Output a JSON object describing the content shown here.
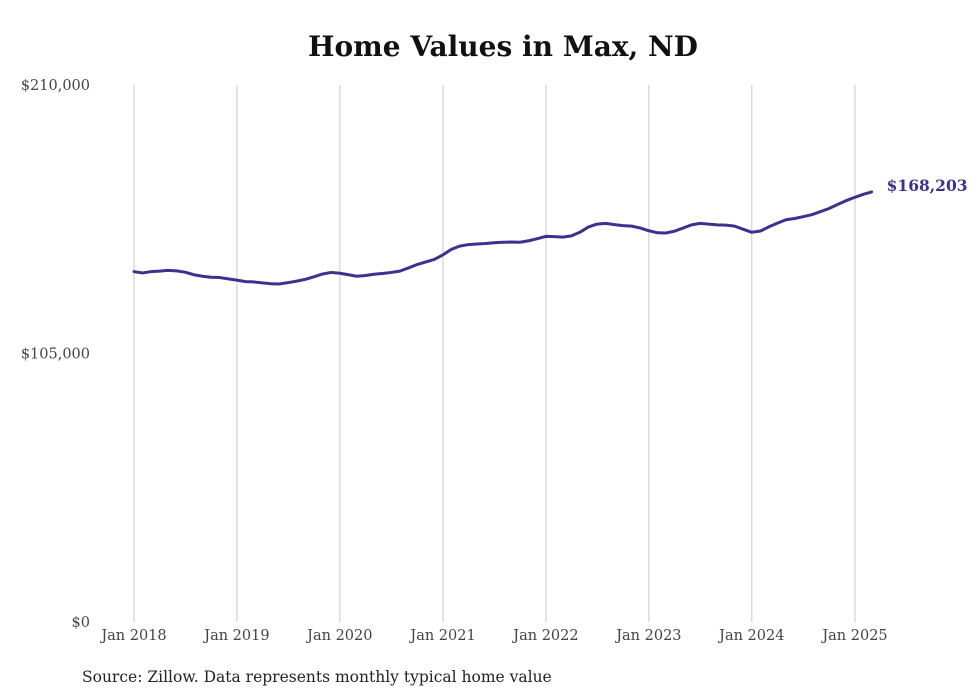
{
  "title": "Home Values in Max, ND",
  "source": "Source: Zillow. Data represents monthly typical home value",
  "end_label": "$168,203",
  "colors": {
    "line": "#3b3290",
    "grid": "#c8c8c8",
    "text": "#444444"
  },
  "chart_data": {
    "type": "line",
    "title": "Home Values in Max, ND",
    "xlabel": "",
    "ylabel": "",
    "ylim": [
      0,
      210000
    ],
    "xlim": [
      "2018-01",
      "2025-03"
    ],
    "grid": {
      "vertical": true,
      "horizontal": false
    },
    "y_ticks": [
      {
        "value": 0,
        "label": "$0"
      },
      {
        "value": 105000,
        "label": "$105,000"
      },
      {
        "value": 210000,
        "label": "$210,000"
      }
    ],
    "x_ticks": [
      {
        "value": "2018-01",
        "label": "Jan 2018"
      },
      {
        "value": "2019-01",
        "label": "Jan 2019"
      },
      {
        "value": "2020-01",
        "label": "Jan 2020"
      },
      {
        "value": "2021-01",
        "label": "Jan 2021"
      },
      {
        "value": "2022-01",
        "label": "Jan 2022"
      },
      {
        "value": "2023-01",
        "label": "Jan 2023"
      },
      {
        "value": "2024-01",
        "label": "Jan 2024"
      },
      {
        "value": "2025-01",
        "label": "Jan 2025"
      }
    ],
    "series": [
      {
        "color": "#3b3290",
        "points": [
          [
            "2018-01",
            137000
          ],
          [
            "2018-02",
            136500
          ],
          [
            "2018-03",
            137000
          ],
          [
            "2018-04",
            137200
          ],
          [
            "2018-05",
            137500
          ],
          [
            "2018-06",
            137300
          ],
          [
            "2018-07",
            136800
          ],
          [
            "2018-08",
            135800
          ],
          [
            "2018-09",
            135200
          ],
          [
            "2018-10",
            134800
          ],
          [
            "2018-11",
            134700
          ],
          [
            "2018-12",
            134200
          ],
          [
            "2019-01",
            133700
          ],
          [
            "2019-02",
            133100
          ],
          [
            "2019-03",
            133000
          ],
          [
            "2019-04",
            132600
          ],
          [
            "2019-05",
            132300
          ],
          [
            "2019-06",
            132200
          ],
          [
            "2019-07",
            132700
          ],
          [
            "2019-08",
            133300
          ],
          [
            "2019-09",
            134000
          ],
          [
            "2019-10",
            135000
          ],
          [
            "2019-11",
            136100
          ],
          [
            "2019-12",
            136700
          ],
          [
            "2020-01",
            136400
          ],
          [
            "2020-02",
            135800
          ],
          [
            "2020-03",
            135200
          ],
          [
            "2020-04",
            135500
          ],
          [
            "2020-05",
            136000
          ],
          [
            "2020-06",
            136300
          ],
          [
            "2020-07",
            136700
          ],
          [
            "2020-08",
            137200
          ],
          [
            "2020-09",
            138500
          ],
          [
            "2020-10",
            139800
          ],
          [
            "2020-11",
            140800
          ],
          [
            "2020-12",
            141800
          ],
          [
            "2021-01",
            143600
          ],
          [
            "2021-02",
            145800
          ],
          [
            "2021-03",
            147000
          ],
          [
            "2021-04",
            147600
          ],
          [
            "2021-05",
            147800
          ],
          [
            "2021-06",
            148000
          ],
          [
            "2021-07",
            148300
          ],
          [
            "2021-08",
            148500
          ],
          [
            "2021-09",
            148600
          ],
          [
            "2021-10",
            148500
          ],
          [
            "2021-11",
            149100
          ],
          [
            "2021-12",
            149900
          ],
          [
            "2022-01",
            150800
          ],
          [
            "2022-02",
            150700
          ],
          [
            "2022-03",
            150500
          ],
          [
            "2022-04",
            151000
          ],
          [
            "2022-05",
            152400
          ],
          [
            "2022-06",
            154500
          ],
          [
            "2022-07",
            155600
          ],
          [
            "2022-08",
            155900
          ],
          [
            "2022-09",
            155400
          ],
          [
            "2022-10",
            155000
          ],
          [
            "2022-11",
            154800
          ],
          [
            "2022-12",
            154100
          ],
          [
            "2023-01",
            153000
          ],
          [
            "2023-02",
            152200
          ],
          [
            "2023-03",
            152100
          ],
          [
            "2023-04",
            152800
          ],
          [
            "2023-05",
            154000
          ],
          [
            "2023-06",
            155300
          ],
          [
            "2023-07",
            155900
          ],
          [
            "2023-08",
            155600
          ],
          [
            "2023-09",
            155300
          ],
          [
            "2023-10",
            155200
          ],
          [
            "2023-11",
            154800
          ],
          [
            "2023-12",
            153600
          ],
          [
            "2024-01",
            152400
          ],
          [
            "2024-02",
            152900
          ],
          [
            "2024-03",
            154500
          ],
          [
            "2024-04",
            156000
          ],
          [
            "2024-05",
            157300
          ],
          [
            "2024-06",
            157800
          ],
          [
            "2024-07",
            158500
          ],
          [
            "2024-08",
            159300
          ],
          [
            "2024-09",
            160500
          ],
          [
            "2024-10",
            161700
          ],
          [
            "2024-11",
            163300
          ],
          [
            "2024-12",
            164800
          ],
          [
            "2025-01",
            166100
          ],
          [
            "2025-02",
            167300
          ],
          [
            "2025-03",
            168203
          ]
        ]
      }
    ]
  }
}
